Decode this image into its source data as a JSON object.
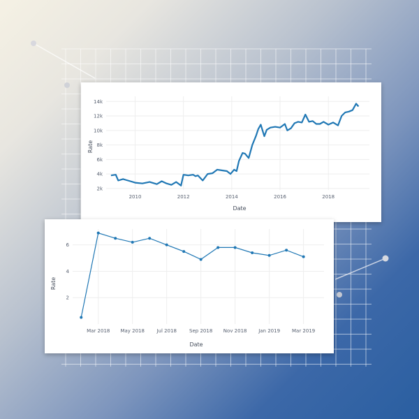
{
  "colors": {
    "line": "#1f77b4",
    "grid": "#eeeeee",
    "decor_grid": "#ffffff"
  },
  "chart_data": [
    {
      "type": "line",
      "title": "",
      "xlabel": "Date",
      "ylabel": "Rate",
      "x_ticks": [
        "2010",
        "2012",
        "2014",
        "2016",
        "2018"
      ],
      "x_tick_values": [
        2010,
        2012,
        2014,
        2016,
        2018
      ],
      "y_ticks": [
        "2k",
        "4k",
        "6k",
        "8k",
        "10k",
        "12k",
        "14k"
      ],
      "y_tick_values": [
        2000,
        4000,
        6000,
        8000,
        10000,
        12000,
        14000
      ],
      "xlim": [
        2008.8,
        2019.7
      ],
      "ylim": [
        1800,
        14700
      ],
      "series": [
        {
          "name": "Rate",
          "x": [
            2009.0,
            2009.2,
            2009.3,
            2009.5,
            2009.6,
            2009.8,
            2010.0,
            2010.3,
            2010.6,
            2010.9,
            2011.1,
            2011.3,
            2011.5,
            2011.7,
            2011.9,
            2012.0,
            2012.2,
            2012.4,
            2012.5,
            2012.6,
            2012.8,
            2013.0,
            2013.2,
            2013.4,
            2013.6,
            2013.8,
            2013.95,
            2014.1,
            2014.2,
            2014.3,
            2014.45,
            2014.55,
            2014.7,
            2014.85,
            2015.0,
            2015.1,
            2015.2,
            2015.35,
            2015.45,
            2015.6,
            2015.8,
            2016.0,
            2016.2,
            2016.3,
            2016.45,
            2016.6,
            2016.75,
            2016.9,
            2017.05,
            2017.2,
            2017.35,
            2017.5,
            2017.65,
            2017.8,
            2018.0,
            2018.2,
            2018.4,
            2018.55,
            2018.7,
            2018.85,
            2019.0,
            2019.15,
            2019.25
          ],
          "y": [
            3800,
            3900,
            3100,
            3300,
            3200,
            3000,
            2800,
            2700,
            2900,
            2600,
            3000,
            2700,
            2500,
            2900,
            2400,
            3900,
            3800,
            3900,
            3700,
            3800,
            3100,
            4000,
            4100,
            4600,
            4500,
            4400,
            4000,
            4600,
            4400,
            5800,
            6900,
            6800,
            6200,
            8000,
            9200,
            10200,
            10800,
            9200,
            10100,
            10400,
            10500,
            10400,
            10900,
            10000,
            10300,
            11000,
            11200,
            11100,
            12200,
            11200,
            11300,
            10900,
            10900,
            11200,
            10800,
            11100,
            10700,
            12000,
            12500,
            12600,
            12800,
            13700,
            13300
          ]
        }
      ]
    },
    {
      "type": "line",
      "title": "",
      "xlabel": "Date",
      "ylabel": "Rate",
      "x_ticks": [
        "Mar 2018",
        "May 2018",
        "Jul 2018",
        "Sep 2018",
        "Nov 2018",
        "Jan 2019",
        "Mar 2019"
      ],
      "x_tick_values": [
        2,
        4,
        6,
        8,
        10,
        12,
        14
      ],
      "y_ticks": [
        "2",
        "4",
        "6"
      ],
      "y_tick_values": [
        2,
        4,
        6
      ],
      "xlim": [
        0.5,
        15.2
      ],
      "ylim": [
        0,
        7.2
      ],
      "series": [
        {
          "name": "Rate",
          "x": [
            1,
            2,
            3,
            4,
            5,
            6,
            7,
            8,
            9,
            10,
            11,
            12,
            13,
            14
          ],
          "y": [
            0.5,
            6.9,
            6.5,
            6.2,
            6.5,
            6.0,
            5.5,
            4.9,
            5.8,
            5.8,
            5.4,
            5.2,
            5.6,
            5.1
          ]
        }
      ]
    }
  ]
}
